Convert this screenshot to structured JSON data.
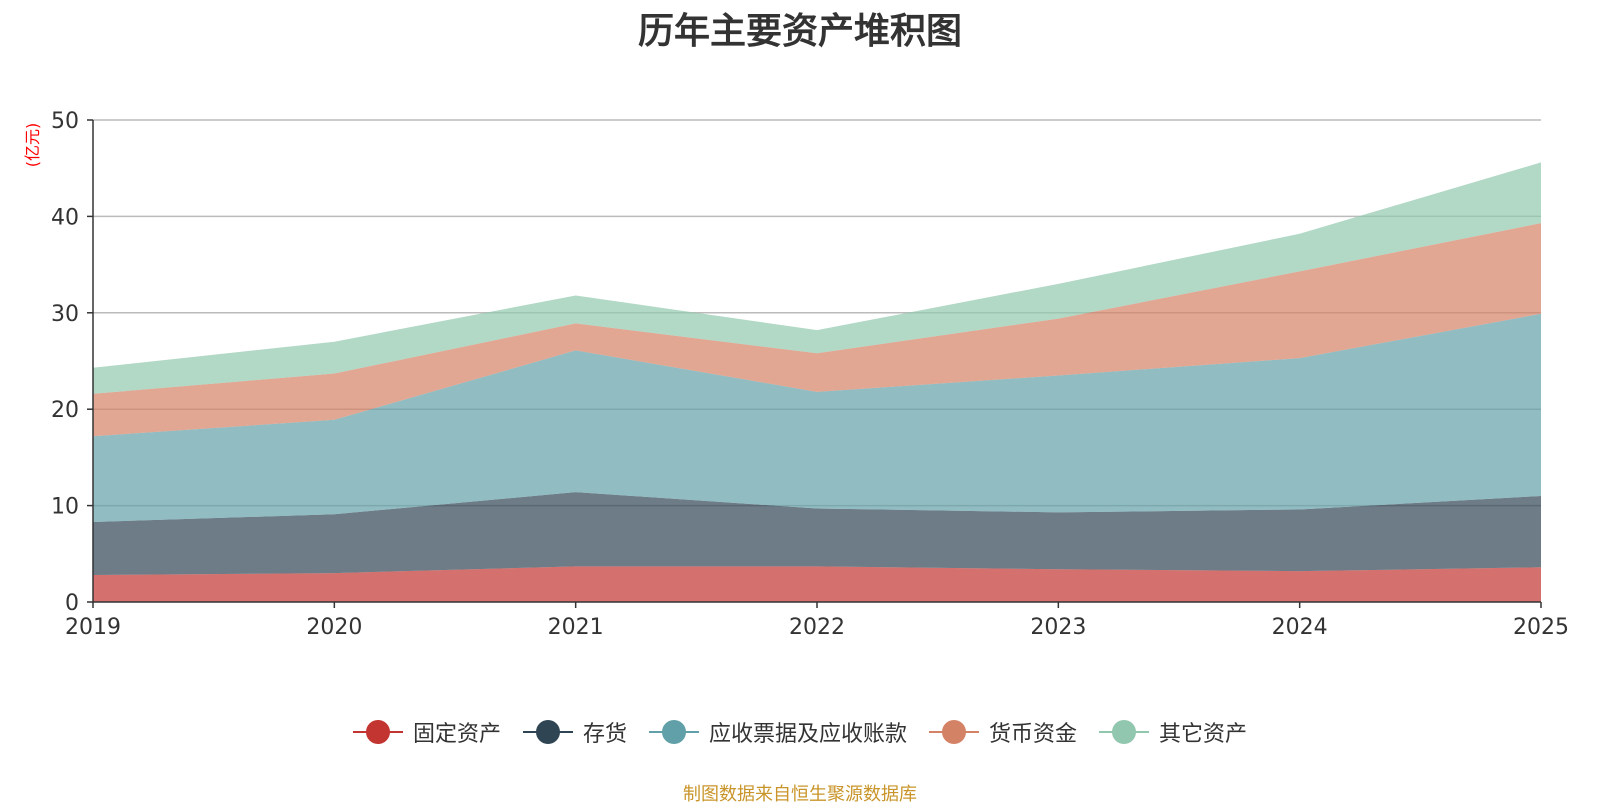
{
  "chart_data": {
    "type": "area",
    "stacked": true,
    "title": "历年主要资产堆积图",
    "ylabel": "(亿元)",
    "xlabel": "",
    "categories": [
      "2019",
      "2020",
      "2021",
      "2022",
      "2023",
      "2024",
      "2025"
    ],
    "ylim": [
      0,
      50
    ],
    "yticks": [
      0,
      10,
      20,
      30,
      40,
      50
    ],
    "grid": true,
    "legend_position": "bottom",
    "series": [
      {
        "name": "固定资产",
        "color": "#c23531",
        "values": [
          2.8,
          3.0,
          3.7,
          3.7,
          3.4,
          3.2,
          3.6
        ]
      },
      {
        "name": "存货",
        "color": "#2f4554",
        "values": [
          5.5,
          6.1,
          7.7,
          6.0,
          5.9,
          6.4,
          7.4
        ]
      },
      {
        "name": "应收票据及应收账款",
        "color": "#61a0a8",
        "values": [
          8.9,
          9.8,
          14.7,
          12.1,
          14.2,
          15.7,
          18.9
        ]
      },
      {
        "name": "货币资金",
        "color": "#d48265",
        "values": [
          4.4,
          4.8,
          2.8,
          4.0,
          5.9,
          9.0,
          9.4
        ]
      },
      {
        "name": "其它资产",
        "color": "#91c7ae",
        "values": [
          2.7,
          3.3,
          2.9,
          2.4,
          3.6,
          3.9,
          6.3
        ]
      }
    ]
  },
  "source_text": "制图数据来自恒生聚源数据库",
  "source_color": "#c9952a",
  "ylabel_color": "#ff0000"
}
